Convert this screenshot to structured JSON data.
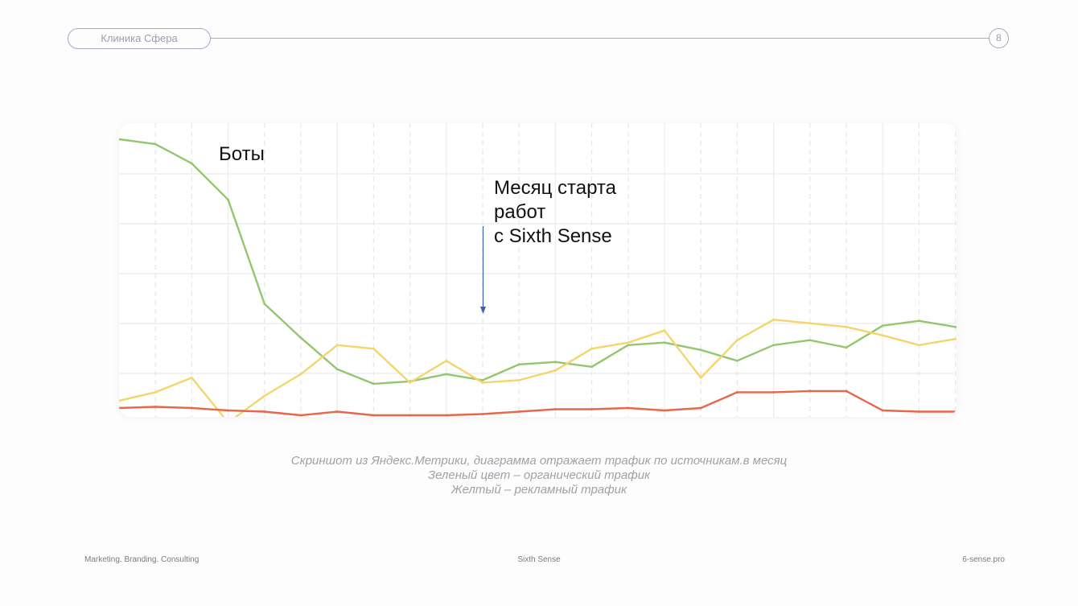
{
  "header": {
    "client_label": "Клиника Сфера",
    "page_number": "8"
  },
  "chart_data": {
    "type": "line",
    "annotations": {
      "bots": "Боты",
      "start_month": "Месяц старта\nработ\nс Sixth Sense"
    },
    "grid": true,
    "series": [
      {
        "color": "#94c66e",
        "values": [
          11.4,
          11.2,
          10.4,
          8.9,
          4.6,
          3.2,
          1.9,
          1.3,
          1.4,
          1.7,
          1.45,
          2.1,
          2.2,
          2.0,
          2.9,
          3.0,
          2.7,
          2.25,
          2.9,
          3.1,
          2.8,
          3.7,
          3.9,
          3.65
        ]
      },
      {
        "color": "#f3d56b",
        "values": [
          0.6,
          0.95,
          1.55,
          -0.3,
          0.8,
          1.7,
          2.9,
          2.75,
          1.35,
          2.25,
          1.35,
          1.45,
          1.85,
          2.75,
          3.0,
          3.5,
          1.55,
          3.1,
          3.95,
          3.8,
          3.65,
          3.3,
          2.9,
          3.15
        ]
      },
      {
        "color": "#e8674b",
        "values": [
          0.3,
          0.35,
          0.3,
          0.2,
          0.15,
          0.0,
          0.15,
          0.0,
          0.0,
          0.0,
          0.05,
          0.15,
          0.25,
          0.25,
          0.3,
          0.2,
          0.3,
          0.95,
          0.95,
          1.0,
          1.0,
          0.2,
          0.15,
          0.15
        ]
      }
    ],
    "ylim": [
      0,
      11.8
    ]
  },
  "caption": {
    "line1": "Скриншот из Яндекс.Метрики, диаграмма отражает трафик по источникам.в месяц",
    "line2": "Зеленый цвет – органический трафик",
    "line3": "Желтый – рекламный трафик"
  },
  "footer": {
    "left": "Marketing. Branding. Consulting",
    "center": "Sixth Sense",
    "right": "6-sense.pro"
  }
}
